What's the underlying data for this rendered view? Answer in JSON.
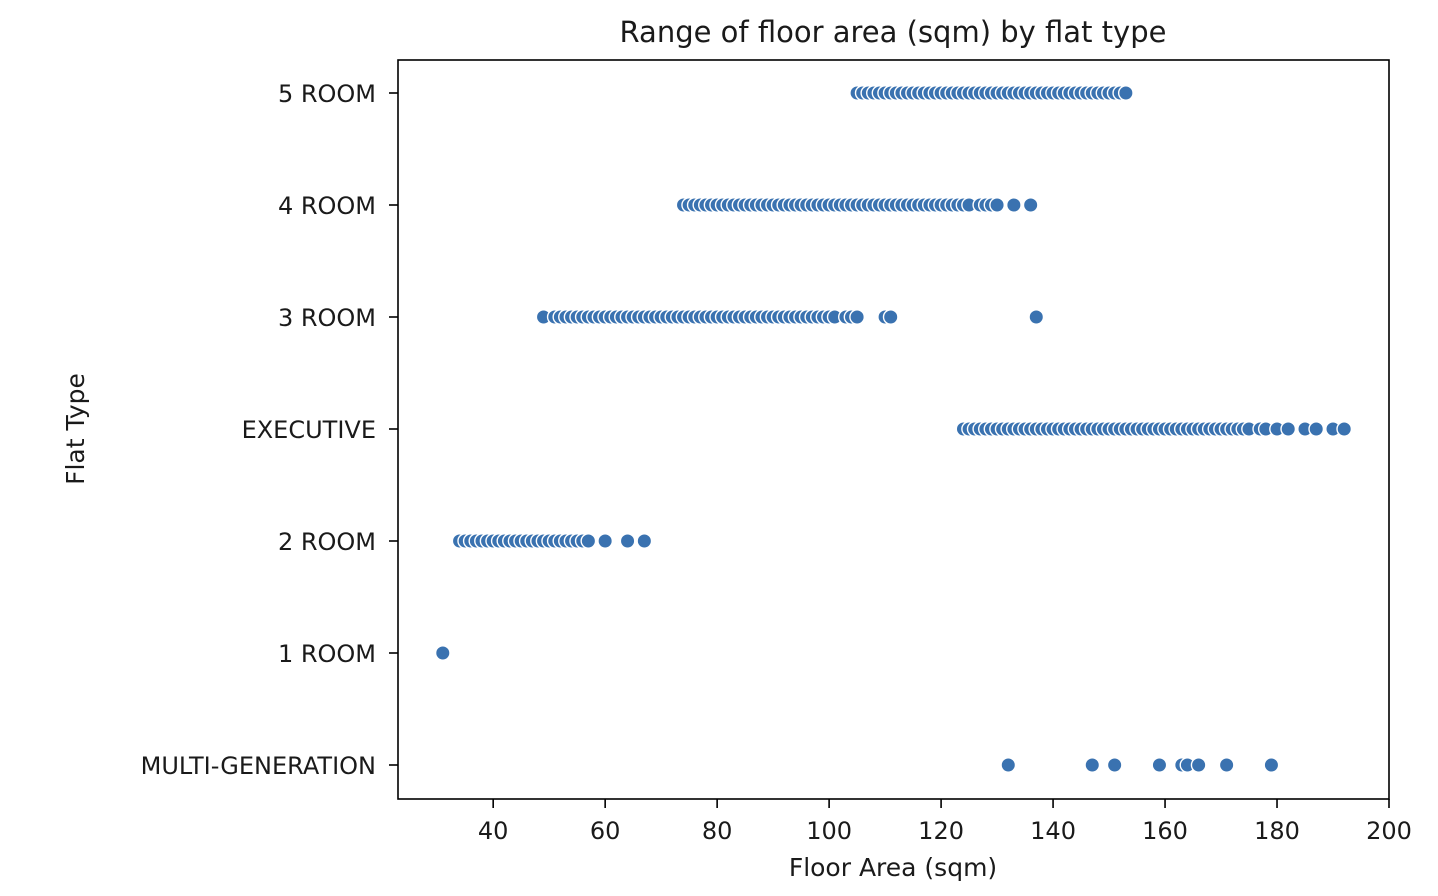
{
  "chart_data": {
    "type": "scatter",
    "title": "Range of floor area (sqm) by flat type",
    "xlabel": "Floor Area (sqm)",
    "ylabel": "Flat Type",
    "xlim": [
      23,
      200
    ],
    "xticks": [
      40,
      60,
      80,
      100,
      120,
      140,
      160,
      180,
      200
    ],
    "grid": false,
    "marker_color": "#3a72b0",
    "marker_edge_color": "#ffffff",
    "categories": [
      "5 ROOM",
      "4 ROOM",
      "3 ROOM",
      "EXECUTIVE",
      "2 ROOM",
      "1 ROOM",
      "MULTI-GENERATION"
    ],
    "series": [
      {
        "category": "5 ROOM",
        "x": [
          105,
          106,
          107,
          108,
          109,
          110,
          111,
          112,
          113,
          114,
          115,
          116,
          117,
          118,
          119,
          120,
          121,
          122,
          123,
          124,
          125,
          126,
          127,
          128,
          129,
          130,
          131,
          132,
          133,
          134,
          135,
          136,
          137,
          138,
          139,
          140,
          141,
          142,
          143,
          144,
          145,
          146,
          147,
          148,
          149,
          150,
          151,
          152,
          153
        ]
      },
      {
        "category": "4 ROOM",
        "x": [
          74,
          75,
          76,
          77,
          78,
          79,
          80,
          81,
          82,
          83,
          84,
          85,
          86,
          87,
          88,
          89,
          90,
          91,
          92,
          93,
          94,
          95,
          96,
          97,
          98,
          99,
          100,
          101,
          102,
          103,
          104,
          105,
          106,
          107,
          108,
          109,
          110,
          111,
          112,
          113,
          114,
          115,
          116,
          117,
          118,
          119,
          120,
          121,
          122,
          123,
          124,
          125,
          127,
          128,
          129,
          130,
          133,
          136
        ]
      },
      {
        "category": "3 ROOM",
        "x": [
          49,
          51,
          52,
          53,
          54,
          55,
          56,
          57,
          58,
          59,
          60,
          61,
          62,
          63,
          64,
          65,
          66,
          67,
          68,
          69,
          70,
          71,
          72,
          73,
          74,
          75,
          76,
          77,
          78,
          79,
          80,
          81,
          82,
          83,
          84,
          85,
          86,
          87,
          88,
          89,
          90,
          91,
          92,
          93,
          94,
          95,
          96,
          97,
          98,
          99,
          100,
          101,
          103,
          104,
          105,
          110,
          111,
          137
        ]
      },
      {
        "category": "EXECUTIVE",
        "x": [
          124,
          125,
          126,
          127,
          128,
          129,
          130,
          131,
          132,
          133,
          134,
          135,
          136,
          137,
          138,
          139,
          140,
          141,
          142,
          143,
          144,
          145,
          146,
          147,
          148,
          149,
          150,
          151,
          152,
          153,
          154,
          155,
          156,
          157,
          158,
          159,
          160,
          161,
          162,
          163,
          164,
          165,
          166,
          167,
          168,
          169,
          170,
          171,
          172,
          173,
          174,
          175,
          177,
          178,
          180,
          182,
          185,
          187,
          190,
          192
        ]
      },
      {
        "category": "2 ROOM",
        "x": [
          34,
          35,
          36,
          37,
          38,
          39,
          40,
          41,
          42,
          43,
          44,
          45,
          46,
          47,
          48,
          49,
          50,
          51,
          52,
          53,
          54,
          55,
          56,
          57,
          60,
          64,
          67
        ]
      },
      {
        "category": "1 ROOM",
        "x": [
          31
        ]
      },
      {
        "category": "MULTI-GENERATION",
        "x": [
          132,
          147,
          151,
          159,
          163,
          164,
          166,
          171,
          179
        ]
      }
    ]
  }
}
